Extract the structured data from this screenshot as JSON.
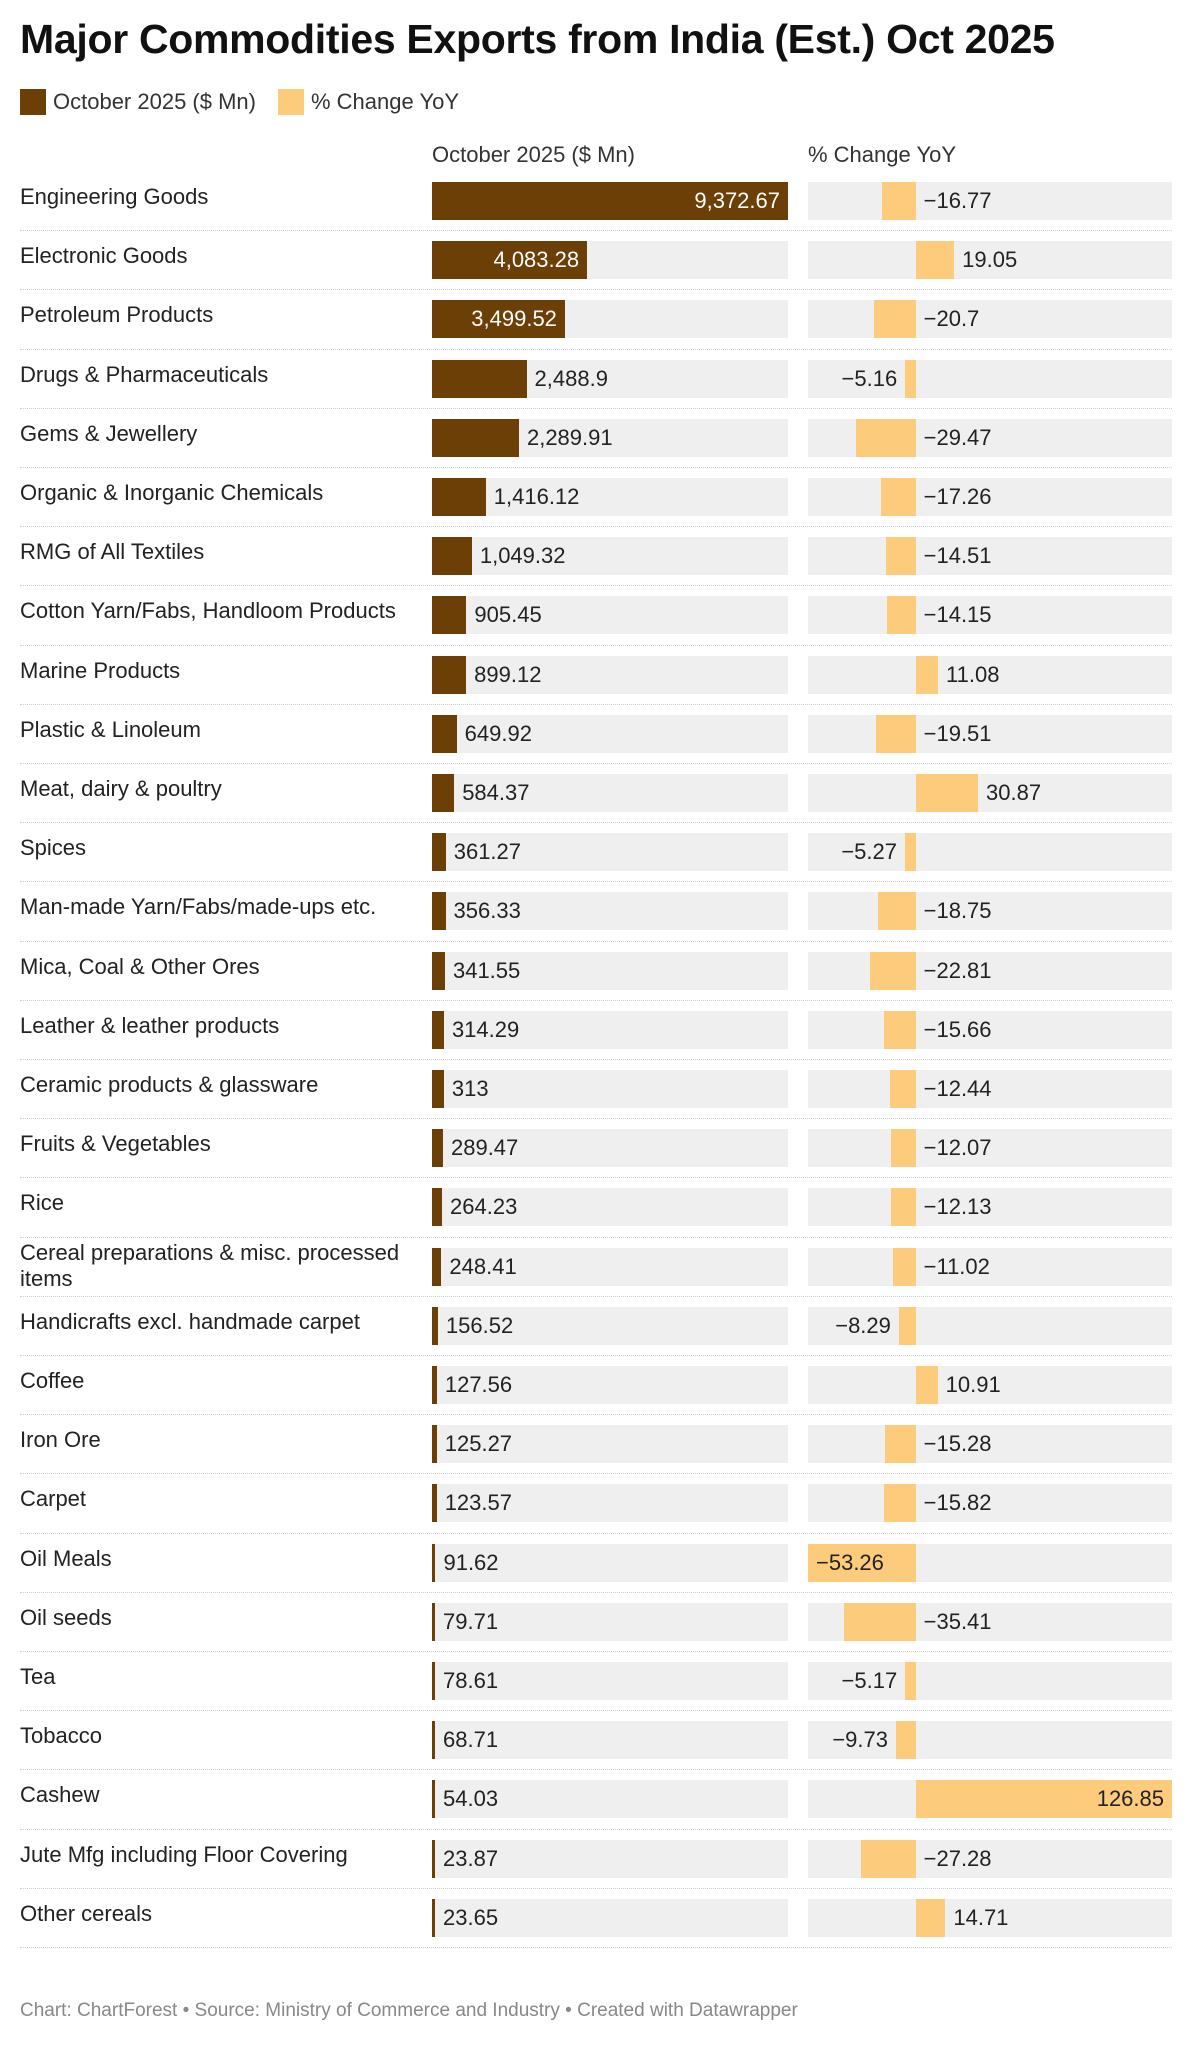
{
  "chart_data": {
    "type": "bar",
    "title": "Major Commodities Exports from India (Est.) Oct 2025",
    "legend": [
      {
        "label": "October 2025 ($ Mn)",
        "color": "#6b3f05"
      },
      {
        "label": "% Change YoY",
        "color": "#fdcb7c"
      }
    ],
    "columns": {
      "value_header": "October 2025 ($ Mn)",
      "change_header": "% Change YoY"
    },
    "value_range": [
      0,
      9372.67
    ],
    "change_range": [
      -53.26,
      126.85
    ],
    "rows": [
      {
        "label": "Engineering Goods",
        "value": 9372.67,
        "value_text": "9,372.67",
        "change": -16.77,
        "change_text": "−16.77"
      },
      {
        "label": "Electronic Goods",
        "value": 4083.28,
        "value_text": "4,083.28",
        "change": 19.05,
        "change_text": "19.05"
      },
      {
        "label": "Petroleum Products",
        "value": 3499.52,
        "value_text": "3,499.52",
        "change": -20.7,
        "change_text": "−20.7"
      },
      {
        "label": "Drugs & Pharmaceuticals",
        "value": 2488.9,
        "value_text": "2,488.9",
        "change": -5.16,
        "change_text": "−5.16"
      },
      {
        "label": "Gems & Jewellery",
        "value": 2289.91,
        "value_text": "2,289.91",
        "change": -29.47,
        "change_text": "−29.47"
      },
      {
        "label": "Organic & Inorganic Chemicals",
        "value": 1416.12,
        "value_text": "1,416.12",
        "change": -17.26,
        "change_text": "−17.26"
      },
      {
        "label": "RMG of All Textiles",
        "value": 1049.32,
        "value_text": "1,049.32",
        "change": -14.51,
        "change_text": "−14.51"
      },
      {
        "label": "Cotton Yarn/Fabs, Handloom Products",
        "value": 905.45,
        "value_text": "905.45",
        "change": -14.15,
        "change_text": "−14.15"
      },
      {
        "label": "Marine Products",
        "value": 899.12,
        "value_text": "899.12",
        "change": 11.08,
        "change_text": "11.08"
      },
      {
        "label": "Plastic & Linoleum",
        "value": 649.92,
        "value_text": "649.92",
        "change": -19.51,
        "change_text": "−19.51"
      },
      {
        "label": "Meat, dairy & poultry",
        "value": 584.37,
        "value_text": "584.37",
        "change": 30.87,
        "change_text": "30.87"
      },
      {
        "label": "Spices",
        "value": 361.27,
        "value_text": "361.27",
        "change": -5.27,
        "change_text": "−5.27"
      },
      {
        "label": "Man-made Yarn/Fabs/made-ups etc.",
        "value": 356.33,
        "value_text": "356.33",
        "change": -18.75,
        "change_text": "−18.75"
      },
      {
        "label": "Mica, Coal & Other Ores",
        "value": 341.55,
        "value_text": "341.55",
        "change": -22.81,
        "change_text": "−22.81"
      },
      {
        "label": "Leather & leather products",
        "value": 314.29,
        "value_text": "314.29",
        "change": -15.66,
        "change_text": "−15.66"
      },
      {
        "label": "Ceramic products & glassware",
        "value": 313,
        "value_text": "313",
        "change": -12.44,
        "change_text": "−12.44"
      },
      {
        "label": "Fruits & Vegetables",
        "value": 289.47,
        "value_text": "289.47",
        "change": -12.07,
        "change_text": "−12.07"
      },
      {
        "label": "Rice",
        "value": 264.23,
        "value_text": "264.23",
        "change": -12.13,
        "change_text": "−12.13"
      },
      {
        "label": "Cereal preparations & misc. processed items",
        "value": 248.41,
        "value_text": "248.41",
        "change": -11.02,
        "change_text": "−11.02"
      },
      {
        "label": "Handicrafts excl. handmade carpet",
        "value": 156.52,
        "value_text": "156.52",
        "change": -8.29,
        "change_text": "−8.29"
      },
      {
        "label": "Coffee",
        "value": 127.56,
        "value_text": "127.56",
        "change": 10.91,
        "change_text": "10.91"
      },
      {
        "label": "Iron Ore",
        "value": 125.27,
        "value_text": "125.27",
        "change": -15.28,
        "change_text": "−15.28"
      },
      {
        "label": "Carpet",
        "value": 123.57,
        "value_text": "123.57",
        "change": -15.82,
        "change_text": "−15.82"
      },
      {
        "label": "Oil Meals",
        "value": 91.62,
        "value_text": "91.62",
        "change": -53.26,
        "change_text": "−53.26"
      },
      {
        "label": "Oil seeds",
        "value": 79.71,
        "value_text": "79.71",
        "change": -35.41,
        "change_text": "−35.41"
      },
      {
        "label": "Tea",
        "value": 78.61,
        "value_text": "78.61",
        "change": -5.17,
        "change_text": "−5.17"
      },
      {
        "label": "Tobacco",
        "value": 68.71,
        "value_text": "68.71",
        "change": -9.73,
        "change_text": "−9.73"
      },
      {
        "label": "Cashew",
        "value": 54.03,
        "value_text": "54.03",
        "change": 126.85,
        "change_text": "126.85"
      },
      {
        "label": "Jute Mfg including Floor Covering",
        "value": 23.87,
        "value_text": "23.87",
        "change": -27.28,
        "change_text": "−27.28"
      },
      {
        "label": "Other cereals",
        "value": 23.65,
        "value_text": "23.65",
        "change": 14.71,
        "change_text": "14.71"
      }
    ],
    "footer": "Chart: ChartForest • Source: Ministry of Commerce and Industry • Created with Datawrapper"
  }
}
